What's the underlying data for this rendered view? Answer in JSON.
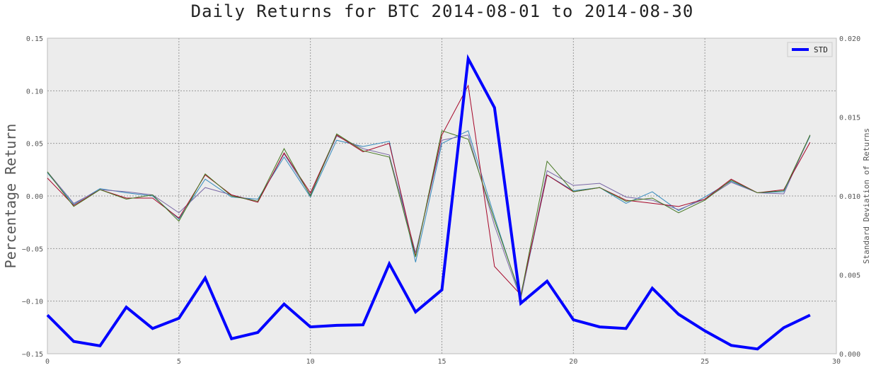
{
  "chart_data": {
    "type": "line",
    "title": "Daily Returns for BTC 2014-08-01 to 2014-08-30",
    "ylabel": "Percentage Return",
    "y2label": "Standard Deviation of Returns",
    "xlabel": "",
    "xlim": [
      0,
      30
    ],
    "ylim": [
      -0.15,
      0.15
    ],
    "y2lim": [
      0.0,
      0.02
    ],
    "grid": true,
    "legend_position": "top-right",
    "x_ticks": [
      0,
      5,
      10,
      15,
      20,
      25,
      30
    ],
    "x_tick_labels": [
      "0",
      "5",
      "10",
      "15",
      "20",
      "25",
      "30"
    ],
    "y_ticks": [
      -0.15,
      -0.1,
      -0.05,
      0.0,
      0.05,
      0.1,
      0.15
    ],
    "y_tick_labels": [
      "−0.15",
      "−0.10",
      "−0.05",
      "0.00",
      "0.05",
      "0.10",
      "0.15"
    ],
    "y2_ticks": [
      0.0,
      0.005,
      0.01,
      0.015,
      0.02
    ],
    "y2_tick_labels": [
      "0.000",
      "0.005",
      "0.010",
      "0.015",
      "0.020"
    ],
    "x": [
      0,
      1,
      2,
      3,
      4,
      5,
      6,
      7,
      8,
      9,
      10,
      11,
      12,
      13,
      14,
      15,
      16,
      17,
      18,
      19,
      20,
      21,
      22,
      23,
      24,
      25,
      26,
      27,
      28,
      29
    ],
    "series": [
      {
        "color": "#348abd",
        "width": 1,
        "axis": "left",
        "values": [
          0.022,
          -0.008,
          0.007,
          0.003,
          0.0,
          -0.022,
          0.016,
          -0.001,
          -0.003,
          0.037,
          -0.001,
          0.053,
          0.047,
          0.052,
          -0.063,
          0.05,
          0.062,
          -0.02,
          -0.097,
          0.02,
          0.005,
          0.008,
          -0.007,
          0.004,
          -0.014,
          -0.001,
          0.014,
          0.003,
          0.004,
          0.057
        ]
      },
      {
        "color": "#7a68a6",
        "width": 1,
        "axis": "left",
        "values": [
          0.023,
          -0.007,
          0.006,
          0.004,
          0.001,
          -0.016,
          0.008,
          0.001,
          -0.005,
          0.04,
          0.001,
          0.057,
          0.045,
          0.039,
          -0.054,
          0.053,
          0.058,
          -0.028,
          -0.098,
          0.024,
          0.01,
          0.012,
          -0.001,
          -0.004,
          -0.013,
          -0.003,
          0.013,
          0.003,
          0.002,
          0.058
        ]
      },
      {
        "color": "#a60628",
        "width": 1,
        "axis": "left",
        "values": [
          0.017,
          -0.009,
          0.006,
          -0.002,
          -0.002,
          -0.021,
          0.02,
          0.001,
          -0.006,
          0.041,
          0.003,
          0.058,
          0.042,
          0.05,
          -0.057,
          0.058,
          0.105,
          -0.067,
          -0.094,
          0.02,
          0.004,
          0.008,
          -0.004,
          -0.007,
          -0.01,
          -0.003,
          0.016,
          0.003,
          0.006,
          0.051
        ]
      },
      {
        "color": "#467821",
        "width": 1,
        "axis": "left",
        "values": [
          0.023,
          -0.01,
          0.006,
          -0.003,
          0.001,
          -0.024,
          0.021,
          0.0,
          -0.005,
          0.045,
          0.0,
          0.059,
          0.043,
          0.037,
          -0.058,
          0.062,
          0.054,
          -0.023,
          -0.095,
          0.033,
          0.004,
          0.008,
          -0.005,
          -0.002,
          -0.016,
          -0.004,
          0.015,
          0.003,
          0.005,
          0.058
        ]
      },
      {
        "name": "STD",
        "color": "#0000ff",
        "width": 4,
        "axis": "right",
        "values": [
          0.00245,
          0.00078,
          0.0005,
          0.00295,
          0.0016,
          0.00225,
          0.0048,
          0.00095,
          0.00135,
          0.00315,
          0.0017,
          0.0018,
          0.00183,
          0.0057,
          0.00265,
          0.00405,
          0.0187,
          0.0156,
          0.0032,
          0.0046,
          0.00215,
          0.0017,
          0.0016,
          0.00415,
          0.0025,
          0.00145,
          0.00053,
          0.0003,
          0.00165,
          0.00245
        ]
      }
    ]
  }
}
